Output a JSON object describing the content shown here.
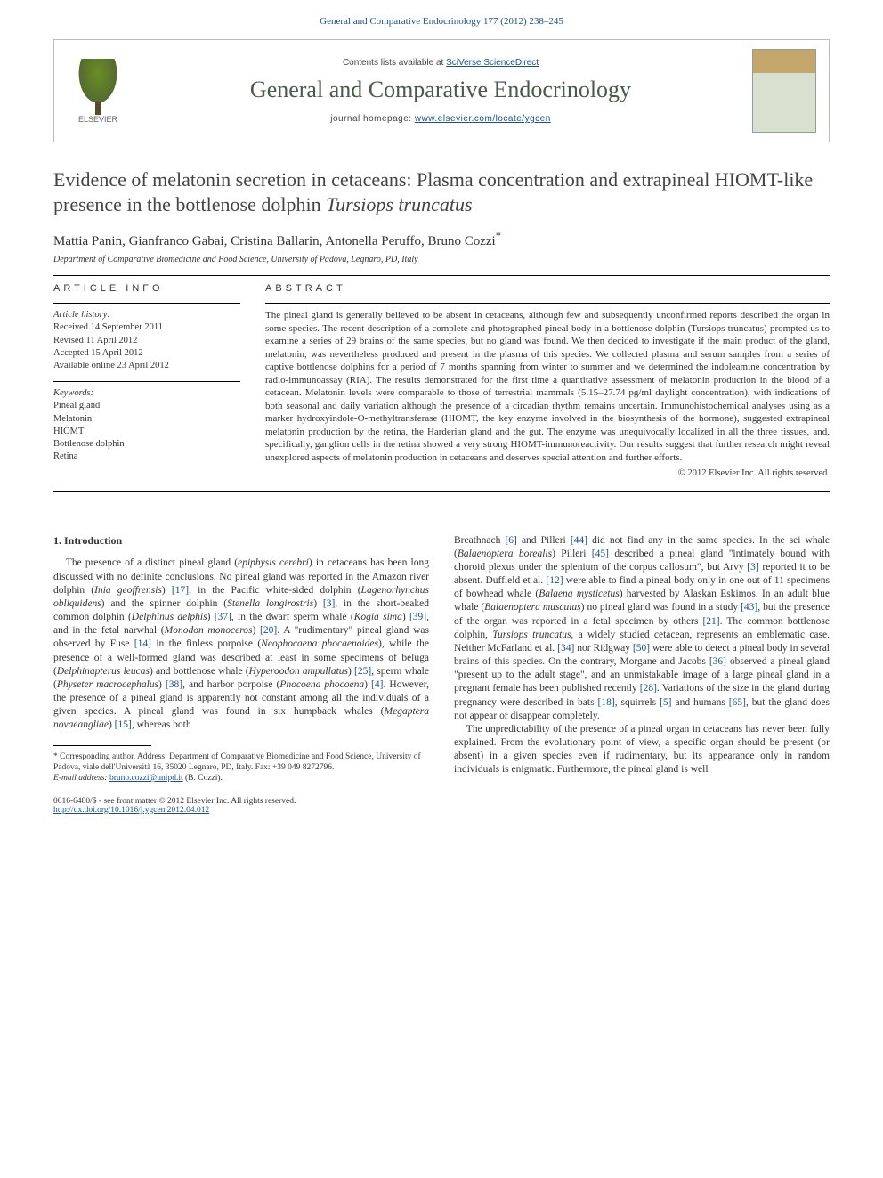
{
  "header": {
    "journal_ref": "General and Comparative Endocrinology 177 (2012) 238–245",
    "contents_prefix": "Contents lists available at ",
    "contents_link": "SciVerse ScienceDirect",
    "journal_title": "General and Comparative Endocrinology",
    "homepage_prefix": "journal homepage: ",
    "homepage_url": "www.elsevier.com/locate/ygcen",
    "publisher_logo_label": "ELSEVIER",
    "cover_label_top": "GENERAL AND COMPARATIVE",
    "cover_label_main": "ENDOCRINOLOGY"
  },
  "article": {
    "title_main": "Evidence of melatonin secretion in cetaceans: Plasma concentration and extrapineal HIOMT-like presence in the bottlenose dolphin ",
    "title_species": "Tursiops truncatus",
    "authors": "Mattia Panin, Gianfranco Gabai, Cristina Ballarin, Antonella Peruffo, Bruno Cozzi",
    "author_marker": "*",
    "affiliation": "Department of Comparative Biomedicine and Food Science, University of Padova, Legnaro, PD, Italy"
  },
  "info": {
    "heading": "article info",
    "history_label": "Article history:",
    "received": "Received 14 September 2011",
    "revised": "Revised 11 April 2012",
    "accepted": "Accepted 15 April 2012",
    "available": "Available online 23 April 2012",
    "keywords_label": "Keywords:",
    "kw1": "Pineal gland",
    "kw2": "Melatonin",
    "kw3": "HIOMT",
    "kw4": "Bottlenose dolphin",
    "kw5": "Retina"
  },
  "abstract": {
    "heading": "abstract",
    "text": "The pineal gland is generally believed to be absent in cetaceans, although few and subsequently unconfirmed reports described the organ in some species. The recent description of a complete and photographed pineal body in a bottlenose dolphin (Tursiops truncatus) prompted us to examine a series of 29 brains of the same species, but no gland was found. We then decided to investigate if the main product of the gland, melatonin, was nevertheless produced and present in the plasma of this species. We collected plasma and serum samples from a series of captive bottlenose dolphins for a period of 7 months spanning from winter to summer and we determined the indoleamine concentration by radio-immunoassay (RIA). The results demonstrated for the first time a quantitative assessment of melatonin production in the blood of a cetacean. Melatonin levels were comparable to those of terrestrial mammals (5.15–27.74 pg/ml daylight concentration), with indications of both seasonal and daily variation although the presence of a circadian rhythm remains uncertain. Immunohistochemical analyses using as a marker hydroxyindole-O-methyltransferase (HIOMT, the key enzyme involved in the biosynthesis of the hormone), suggested extrapineal melatonin production by the retina, the Harderian gland and the gut. The enzyme was unequivocally localized in all the three tissues, and, specifically, ganglion cells in the retina showed a very strong HIOMT-immunoreactivity. Our results suggest that further research might reveal unexplored aspects of melatonin production in cetaceans and deserves special attention and further efforts.",
    "copyright": "© 2012 Elsevier Inc. All rights reserved."
  },
  "intro": {
    "heading": "1. Introduction",
    "p1a": "The presence of a distinct pineal gland (",
    "p1a_it": "epiphysis cerebri",
    "p1b": ") in cetaceans has been long discussed with no definite conclusions. No pineal gland was reported in the Amazon river dolphin (",
    "p1b_sp": "Inia geoffrensis",
    "p1c": ") ",
    "p1c_cite": "[17]",
    "p1d": ", in the Pacific white-sided dolphin (",
    "p1d_sp": "Lagenorhynchus obliquidens",
    "p1e": ") and the spinner dolphin (",
    "p1e_sp": "Stenella longirostris",
    "p1f": ") ",
    "p1f_cite": "[3]",
    "p1g": ", in the short-beaked common dolphin (",
    "p1g_sp": "Delphinus delphis",
    "p1h": ") ",
    "p1h_cite": "[37]",
    "p1i": ", in the dwarf sperm whale (",
    "p1i_sp": "Kogia sima",
    "p1j": ") ",
    "p1j_cite": "[39]",
    "p1k": ", and in the fetal narwhal (",
    "p1k_sp": "Monodon monoceros",
    "p1l": ") ",
    "p1l_cite": "[20]",
    "p1m": ". A \"rudimentary\" pineal gland was observed by Fuse ",
    "p1m_cite": "[14]",
    "p1n": " in the finless porpoise (",
    "p1n_sp": "Neophocaena phocaenoides",
    "p1o": "), while the presence of a well-formed gland was described at least in some specimens of beluga (",
    "p1o_sp": "Delphinapterus leucas",
    "p1p": ") and bottlenose whale (",
    "p1p_sp": "Hyperoodon ampullatus",
    "p1q": ") ",
    "p1q_cite": "[25]",
    "p1r": ", sperm whale (",
    "p1r_sp": "Physeter macrocephalus",
    "p1s": ") ",
    "p1s_cite": "[38]",
    "p1t": ", and harbor porpoise (",
    "p1t_sp": "Phocoena phocoena",
    "p1u": ") ",
    "p1u_cite": "[4]",
    "p1v": ". However, the presence of a pineal gland is apparently not constant among all the individuals of a given species. A pineal gland was found in six humpback whales (",
    "p1v_sp": "Megaptera novaeangliae",
    "p1w": ") ",
    "p1w_cite": "[15]",
    "p1x": ", whereas both",
    "p2a": "Breathnach ",
    "p2a_cite": "[6]",
    "p2b": " and Pilleri ",
    "p2b_cite": "[44]",
    "p2c": " did not find any in the same species. In the sei whale (",
    "p2c_sp": "Balaenoptera borealis",
    "p2d": ") Pilleri ",
    "p2d_cite": "[45]",
    "p2e": " described a pineal gland \"intimately bound with choroid plexus under the splenium of the corpus callosum\", but Arvy ",
    "p2e_cite": "[3]",
    "p2f": " reported it to be absent. Duffield et al. ",
    "p2f_cite": "[12]",
    "p2g": " were able to find a pineal body only in one out of 11 specimens of bowhead whale (",
    "p2g_sp": "Balaena mysticetus",
    "p2h": ") harvested by Alaskan Eskimos. In an adult blue whale (",
    "p2h_sp": "Balaenoptera musculus",
    "p2i": ") no pineal gland was found in a study ",
    "p2i_cite": "[43]",
    "p2j": ", but the presence of the organ was reported in a fetal specimen by others ",
    "p2j_cite": "[21]",
    "p2k": ". The common bottlenose dolphin, ",
    "p2k_sp": "Tursiops truncatus",
    "p2l": ", a widely studied cetacean, represents an emblematic case. Neither McFarland et al. ",
    "p2l_cite": "[34]",
    "p2m": " nor Ridgway ",
    "p2m_cite": "[50]",
    "p2n": " were able to detect a pineal body in several brains of this species. On the contrary, Morgane and Jacobs ",
    "p2n_cite": "[36]",
    "p2o": " observed a pineal gland \"present up to the adult stage\", and an unmistakable image of a large pineal gland in a pregnant female has been published recently ",
    "p2o_cite": "[28]",
    "p2p": ". Variations of the size in the gland during pregnancy were described in bats ",
    "p2p_cite": "[18]",
    "p2q": ", squirrels ",
    "p2q_cite": "[5]",
    "p2r": " and humans ",
    "p2r_cite": "[65]",
    "p2s": ", but the gland does not appear or disappear completely.",
    "p3": "The unpredictability of the presence of a pineal organ in cetaceans has never been fully explained. From the evolutionary point of view, a specific organ should be present (or absent) in a given species even if rudimentary, but its appearance only in random individuals is enigmatic. Furthermore, the pineal gland is well"
  },
  "footnote": {
    "corr_label": "* Corresponding author. Address: Department of Comparative Biomedicine and Food Science, University of Padova, viale dell'Università 16, 35020 Legnaro, PD, Italy. Fax: +39 049 8272796.",
    "email_label": "E-mail address:",
    "email": "bruno.cozzi@unipd.it",
    "email_who": "(B. Cozzi)."
  },
  "footer": {
    "issn_line": "0016-6480/$ - see front matter © 2012 Elsevier Inc. All rights reserved.",
    "doi_url": "http://dx.doi.org/10.1016/j.ygcen.2012.04.012"
  },
  "colors": {
    "link": "#1b4f8f",
    "journal_title": "#4a5a4a",
    "text": "#333333",
    "rule": "#000000"
  }
}
